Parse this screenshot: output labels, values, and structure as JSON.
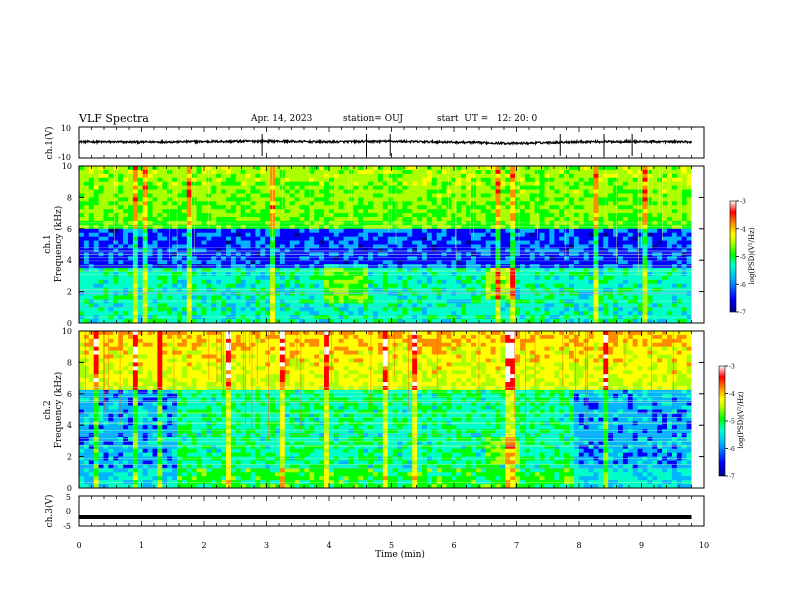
{
  "header": {
    "title": "VLF Spectra",
    "date": "Apr. 14, 2023",
    "station": "station= OUJ",
    "start": "start  UT =   12: 20: 0"
  },
  "colors": {
    "colormap": [
      "#00008c",
      "#0000ff",
      "#00b4ff",
      "#00ffc8",
      "#00ff00",
      "#aaff00",
      "#ffff00",
      "#ff8c00",
      "#ff0000",
      "#ffffff"
    ],
    "trace": "#000000"
  },
  "chart_data": [
    {
      "type": "line",
      "panel": "ch1_waveform",
      "ylabel": "ch.1(V)",
      "ylim": [
        -10,
        10
      ],
      "yticks": [
        "10",
        "-10"
      ],
      "x": [
        0,
        1,
        2,
        3,
        4,
        5,
        6,
        7,
        8,
        9,
        9.8
      ],
      "values": [
        0.5,
        0.3,
        0.6,
        0.9,
        0.4,
        0.8,
        0.2,
        -0.6,
        0.5,
        0.6,
        0.4
      ],
      "spikes_x": [
        2.93,
        4.6,
        4.98,
        7.7,
        8.4,
        8.85
      ]
    },
    {
      "type": "heatmap",
      "panel": "ch1_spectrogram",
      "ylabel": "ch.1\nFrequency (kHz)",
      "ylim": [
        0,
        10
      ],
      "yticks": [
        "0",
        "2",
        "4",
        "6",
        "8",
        "10"
      ],
      "colorbar": {
        "label": "log(PSD)(V²/Hz)",
        "range": [
          -7,
          -3
        ],
        "ticks": [
          "-3",
          "-4",
          "-5",
          "-6",
          "-7"
        ]
      }
    },
    {
      "type": "heatmap",
      "panel": "ch2_spectrogram",
      "ylabel": "ch.2\nFrequency (kHz)",
      "ylim": [
        0,
        10
      ],
      "yticks": [
        "0",
        "2",
        "4",
        "6",
        "8",
        "10"
      ],
      "colorbar": {
        "label": "log(PSD)(V²/Hz)",
        "range": [
          -7,
          -3
        ],
        "ticks": [
          "-3",
          "-4",
          "-5",
          "-6",
          "-7"
        ]
      }
    },
    {
      "type": "line",
      "panel": "ch3_waveform",
      "ylabel": "ch.3(V)",
      "ylim": [
        -5,
        5
      ],
      "yticks": [
        "5",
        "0",
        "-5"
      ],
      "x": [
        0,
        9.8
      ],
      "values": [
        -2,
        -2
      ]
    }
  ],
  "xaxis": {
    "label": "Time (min)",
    "xlim": [
      0,
      10
    ],
    "ticks": [
      "0",
      "1",
      "2",
      "3",
      "4",
      "5",
      "6",
      "7",
      "8",
      "9",
      "10"
    ]
  }
}
